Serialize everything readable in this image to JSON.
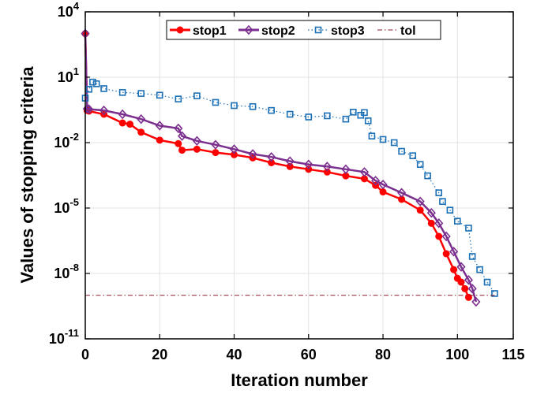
{
  "chart_data": {
    "type": "line",
    "title": "",
    "xlabel": "Iteration number",
    "ylabel": "Values of stopping criteria",
    "yscale": "log",
    "xlim": [
      0,
      115
    ],
    "ylim": [
      1e-11,
      10000
    ],
    "grid": true,
    "legend_position": "top",
    "x_ticks": [
      0,
      20,
      40,
      60,
      80,
      100,
      115
    ],
    "x_tick_labels": [
      "0",
      "20",
      "40",
      "60",
      "80",
      "100",
      "115"
    ],
    "y_ticks": [
      {
        "value": 1e-11,
        "base": "10",
        "exp": "-11"
      },
      {
        "value": 1e-08,
        "base": "10",
        "exp": "-8"
      },
      {
        "value": 1e-05,
        "base": "10",
        "exp": "-5"
      },
      {
        "value": 0.01,
        "base": "10",
        "exp": "-2"
      },
      {
        "value": 10,
        "base": "10",
        "exp": "1"
      },
      {
        "value": 10000,
        "base": "10",
        "exp": "4"
      }
    ],
    "series": [
      {
        "name": "stop1",
        "color": "#ff0000",
        "marker": "circle",
        "line": "solid",
        "points": [
          [
            0,
            1000
          ],
          [
            0.5,
            0.3
          ],
          [
            1,
            0.28
          ],
          [
            5,
            0.2
          ],
          [
            10,
            0.08
          ],
          [
            12,
            0.07
          ],
          [
            15,
            0.03
          ],
          [
            20,
            0.013
          ],
          [
            25,
            0.009
          ],
          [
            26,
            0.0045
          ],
          [
            30,
            0.005
          ],
          [
            35,
            0.0035
          ],
          [
            40,
            0.0028
          ],
          [
            45,
            0.002
          ],
          [
            50,
            0.0012
          ],
          [
            55,
            0.0008
          ],
          [
            60,
            0.0006
          ],
          [
            65,
            0.00045
          ],
          [
            70,
            0.0003
          ],
          [
            75,
            0.00022
          ],
          [
            78,
            0.00011
          ],
          [
            80,
            5.5e-05
          ],
          [
            85,
            2.5e-05
          ],
          [
            90,
            8e-06
          ],
          [
            93,
            2e-06
          ],
          [
            95,
            5e-07
          ],
          [
            97,
            8e-08
          ],
          [
            99,
            1.5e-08
          ],
          [
            100,
            6e-09
          ],
          [
            101,
            4e-09
          ],
          [
            102,
            2e-09
          ],
          [
            103,
            8e-10
          ]
        ]
      },
      {
        "name": "stop2",
        "color": "#7b2f8e",
        "marker": "diamond",
        "line": "solid",
        "points": [
          [
            0,
            1000
          ],
          [
            0.5,
            0.36
          ],
          [
            1,
            0.34
          ],
          [
            5,
            0.3
          ],
          [
            10,
            0.2
          ],
          [
            15,
            0.12
          ],
          [
            20,
            0.06
          ],
          [
            25,
            0.045
          ],
          [
            26,
            0.02
          ],
          [
            30,
            0.012
          ],
          [
            35,
            0.008
          ],
          [
            40,
            0.005
          ],
          [
            45,
            0.003
          ],
          [
            50,
            0.0022
          ],
          [
            55,
            0.0014
          ],
          [
            60,
            0.001
          ],
          [
            65,
            0.0008
          ],
          [
            70,
            0.0006
          ],
          [
            75,
            0.00045
          ],
          [
            78,
            0.00018
          ],
          [
            80,
            0.00012
          ],
          [
            85,
            5e-05
          ],
          [
            90,
            2e-05
          ],
          [
            93,
            6e-06
          ],
          [
            95,
            2e-06
          ],
          [
            97,
            5e-07
          ],
          [
            99,
            1e-07
          ],
          [
            101,
            2e-08
          ],
          [
            103,
            5e-09
          ],
          [
            104,
            2e-09
          ],
          [
            105,
            5e-10
          ]
        ]
      },
      {
        "name": "stop3",
        "color": "#1a6fb5",
        "marker": "square",
        "line": "dotted",
        "points": [
          [
            0,
            1.1
          ],
          [
            1,
            2.8
          ],
          [
            2,
            6
          ],
          [
            3,
            5
          ],
          [
            5,
            3
          ],
          [
            10,
            2
          ],
          [
            15,
            1.8
          ],
          [
            20,
            1.5
          ],
          [
            25,
            1
          ],
          [
            30,
            1.4
          ],
          [
            35,
            0.7
          ],
          [
            40,
            0.5
          ],
          [
            45,
            0.45
          ],
          [
            50,
            0.3
          ],
          [
            55,
            0.2
          ],
          [
            60,
            0.15
          ],
          [
            65,
            0.17
          ],
          [
            70,
            0.12
          ],
          [
            72,
            0.25
          ],
          [
            74,
            0.18
          ],
          [
            75,
            0.24
          ],
          [
            76,
            0.1
          ],
          [
            77,
            0.02
          ],
          [
            80,
            0.014
          ],
          [
            83,
            0.01
          ],
          [
            85,
            0.004
          ],
          [
            88,
            0.0025
          ],
          [
            90,
            0.001
          ],
          [
            92,
            0.0003
          ],
          [
            95,
            5e-05
          ],
          [
            96,
            2e-05
          ],
          [
            98,
            8e-06
          ],
          [
            100,
            2.5e-06
          ],
          [
            103,
            1.2e-06
          ],
          [
            104,
            6e-08
          ],
          [
            106,
            1.5e-08
          ],
          [
            108,
            4e-09
          ],
          [
            110,
            1.2e-09
          ]
        ]
      },
      {
        "name": "tol",
        "color": "#8b1a2e",
        "marker": "none",
        "line": "dashdot",
        "points": [
          [
            0,
            1e-09
          ],
          [
            110,
            1e-09
          ]
        ]
      }
    ]
  }
}
